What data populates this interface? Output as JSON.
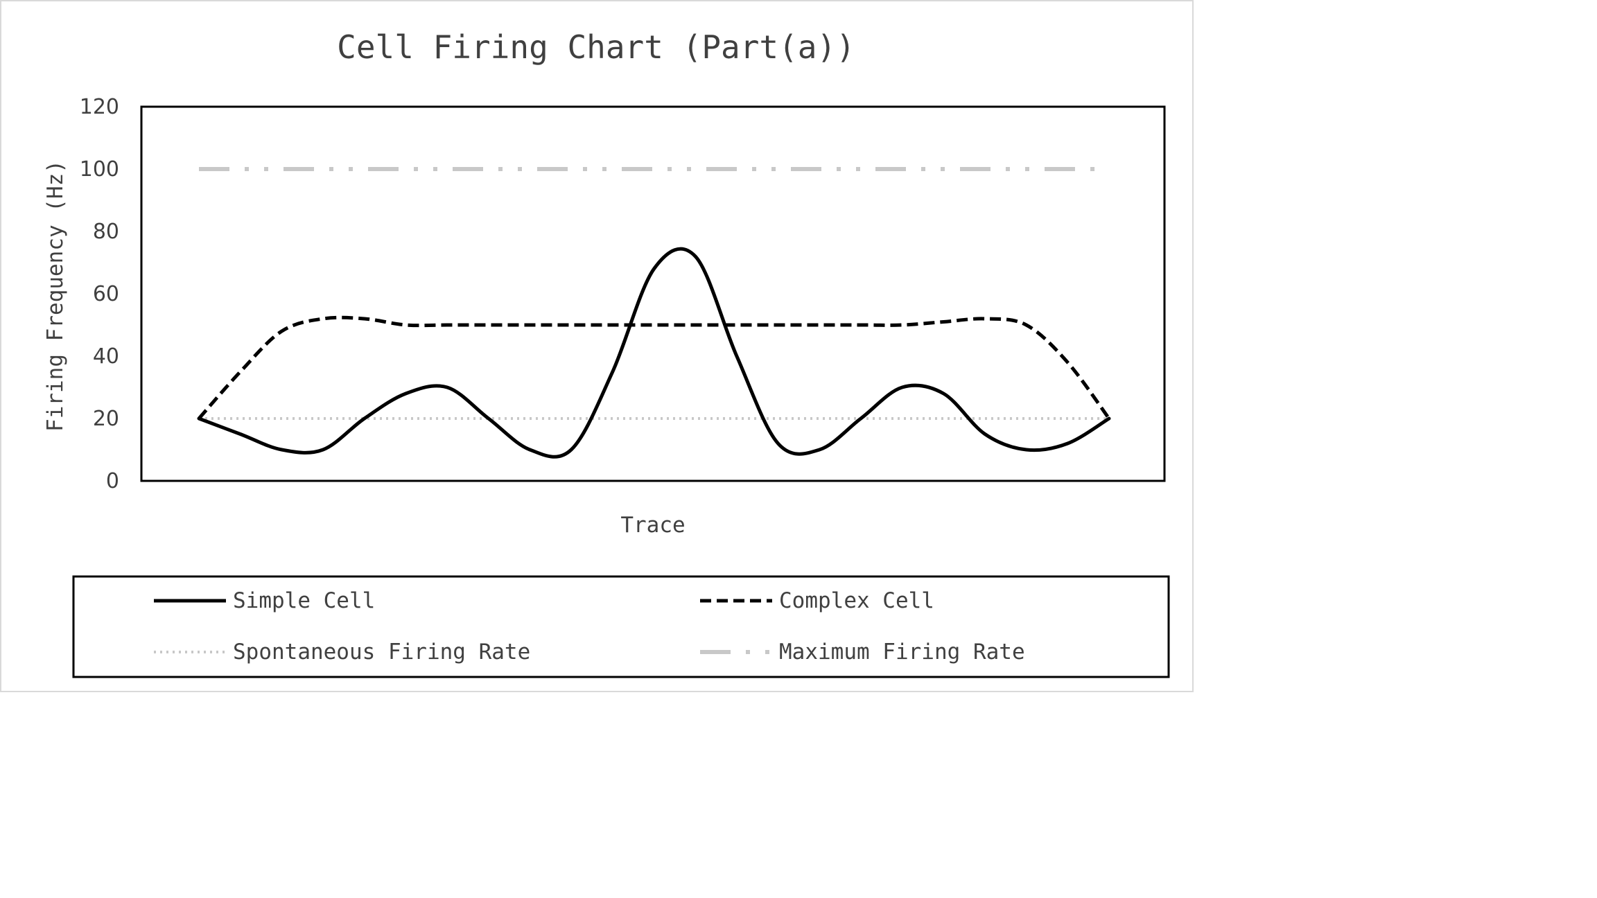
{
  "chart_data": {
    "type": "line",
    "title": "Cell Firing Chart (Part(a))",
    "xlabel": "Trace",
    "ylabel": "Firing Frequency (Hz)",
    "ylim": [
      0,
      120
    ],
    "yticks": [
      "0",
      "20",
      "40",
      "60",
      "80",
      "100",
      "120"
    ],
    "grid": false,
    "legend_position": "bottom",
    "x": [
      0,
      1,
      2,
      3,
      4,
      5,
      6,
      7,
      8,
      9,
      10,
      11,
      12,
      13,
      14,
      15,
      16,
      17,
      18,
      19,
      20,
      21,
      22
    ],
    "series": [
      {
        "name": "Simple Cell",
        "style": "solid",
        "color": "#000000",
        "values": [
          20,
          15,
          10,
          10,
          20,
          28,
          30,
          20,
          10,
          10,
          35,
          68,
          72,
          40,
          12,
          10,
          20,
          30,
          28,
          15,
          10,
          12,
          20
        ]
      },
      {
        "name": "Complex Cell",
        "style": "dashed",
        "color": "#000000",
        "values": [
          20,
          35,
          48,
          52,
          52,
          50,
          50,
          50,
          50,
          50,
          50,
          50,
          50,
          50,
          50,
          50,
          50,
          50,
          51,
          52,
          50,
          38,
          20
        ]
      },
      {
        "name": "Spontaneous Firing Rate",
        "style": "dotted",
        "color": "#c8c8c8",
        "values": [
          20,
          20,
          20,
          20,
          20,
          20,
          20,
          20,
          20,
          20,
          20,
          20,
          20,
          20,
          20,
          20,
          20,
          20,
          20,
          20,
          20,
          20,
          20
        ]
      },
      {
        "name": "Maximum Firing Rate",
        "style": "dash-dot-dot",
        "color": "#c8c8c8",
        "values": [
          100,
          100,
          100,
          100,
          100,
          100,
          100,
          100,
          100,
          100,
          100,
          100,
          100,
          100,
          100,
          100,
          100,
          100,
          100,
          100,
          100,
          100,
          100
        ]
      }
    ]
  }
}
